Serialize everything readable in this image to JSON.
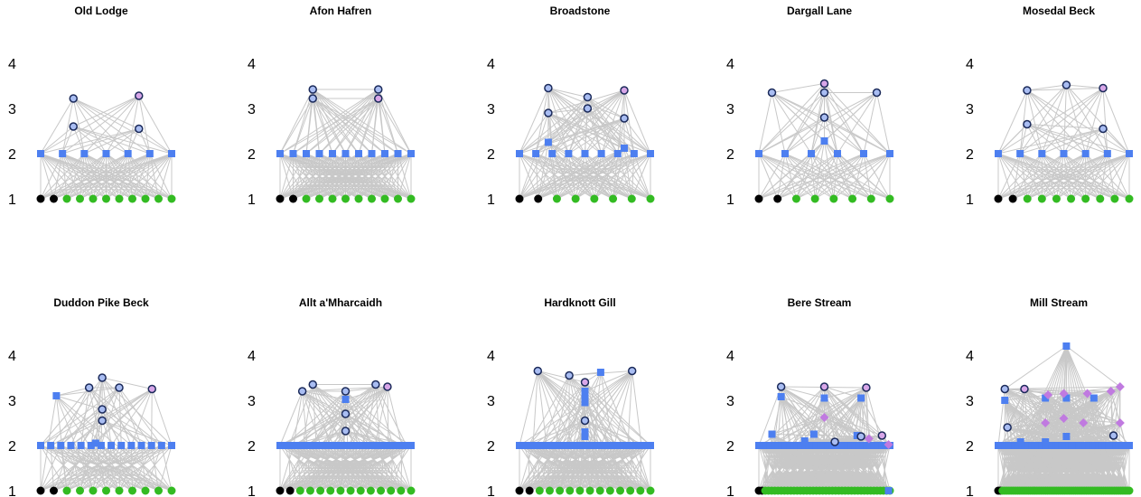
{
  "colors": {
    "edge": "#c8c8c8",
    "basal_black": "#000000",
    "basal_green": "#33bb22",
    "square_blue": "#4d7ff0",
    "circle_fill": "#a9bdf2",
    "circle_stroke": "#1b2a5a",
    "circle_top_fill": "#d8a6e8",
    "diamond": "#c07ae0"
  },
  "chart_data": [
    {
      "type": "food-web",
      "title": "Old Lodge",
      "y_ticks": [
        1,
        2,
        3,
        4
      ],
      "ylim": [
        1,
        4
      ],
      "levels": {
        "basal_black": 2,
        "basal_green": 9,
        "squares": 7,
        "diamonds": [],
        "circles": [
          [
            0.25,
            3.22
          ],
          [
            0.25,
            2.6
          ],
          [
            0.75,
            2.55
          ]
        ],
        "top_circle": [
          0.75,
          3.28
        ]
      }
    },
    {
      "type": "food-web",
      "title": "Afon Hafren",
      "y_ticks": [
        1,
        2,
        3,
        4
      ],
      "ylim": [
        1,
        4
      ],
      "levels": {
        "basal_black": 2,
        "basal_green": 9,
        "squares": 11,
        "diamonds": [],
        "circles": [
          [
            0.25,
            3.42
          ],
          [
            0.25,
            3.22
          ],
          [
            0.75,
            3.42
          ]
        ],
        "top_circle": [
          0.75,
          3.22
        ]
      }
    },
    {
      "type": "food-web",
      "title": "Broadstone",
      "y_ticks": [
        1,
        2,
        3,
        4
      ],
      "ylim": [
        1,
        4
      ],
      "levels": {
        "basal_black": 2,
        "basal_green": 6,
        "squares": 9,
        "diamonds": [],
        "extra_squares": [
          [
            0.22,
            2.25
          ],
          [
            0.8,
            2.12
          ]
        ],
        "circles": [
          [
            0.22,
            3.45
          ],
          [
            0.22,
            2.9
          ],
          [
            0.52,
            3.25
          ],
          [
            0.52,
            3.0
          ],
          [
            0.8,
            2.78
          ]
        ],
        "top_circle": [
          0.8,
          3.4
        ]
      }
    },
    {
      "type": "food-web",
      "title": "Dargall Lane",
      "y_ticks": [
        1,
        2,
        3,
        4
      ],
      "ylim": [
        1,
        4
      ],
      "levels": {
        "basal_black": 2,
        "basal_green": 6,
        "squares": 6,
        "diamonds": [],
        "extra_squares": [
          [
            0.5,
            2.28
          ]
        ],
        "circles": [
          [
            0.1,
            3.35
          ],
          [
            0.5,
            3.35
          ],
          [
            0.5,
            2.8
          ],
          [
            0.9,
            3.35
          ]
        ],
        "top_circle": [
          0.5,
          3.55
        ]
      }
    },
    {
      "type": "food-web",
      "title": "Mosedal Beck",
      "y_ticks": [
        1,
        2,
        3,
        4
      ],
      "ylim": [
        1,
        4
      ],
      "levels": {
        "basal_black": 2,
        "basal_green": 8,
        "squares": 7,
        "diamonds": [],
        "circles": [
          [
            0.22,
            3.4
          ],
          [
            0.22,
            2.65
          ],
          [
            0.52,
            3.52
          ],
          [
            0.8,
            2.55
          ]
        ],
        "top_circle": [
          0.8,
          3.45
        ]
      }
    },
    {
      "type": "food-web",
      "title": "Duddon Pike Beck",
      "y_ticks": [
        1,
        2,
        3,
        4
      ],
      "ylim": [
        1,
        4
      ],
      "levels": {
        "basal_black": 2,
        "basal_green": 9,
        "squares": 14,
        "diamonds": [],
        "extra_squares": [
          [
            0.12,
            3.1
          ],
          [
            0.42,
            2.05
          ]
        ],
        "circles": [
          [
            0.37,
            3.28
          ],
          [
            0.47,
            3.5
          ],
          [
            0.47,
            2.8
          ],
          [
            0.47,
            2.55
          ],
          [
            0.6,
            3.28
          ]
        ],
        "top_circle": [
          0.85,
          3.25
        ]
      }
    },
    {
      "type": "food-web",
      "title": "Allt a'Mharcaidh",
      "y_ticks": [
        1,
        2,
        3,
        4
      ],
      "ylim": [
        1,
        4
      ],
      "levels": {
        "basal_black": 2,
        "basal_green": 12,
        "squares": 30,
        "diamonds": [],
        "extra_squares": [
          [
            0.5,
            3.02
          ]
        ],
        "circles": [
          [
            0.17,
            3.2
          ],
          [
            0.25,
            3.35
          ],
          [
            0.5,
            3.2
          ],
          [
            0.5,
            2.7
          ],
          [
            0.5,
            2.32
          ],
          [
            0.73,
            3.35
          ]
        ],
        "top_circle": [
          0.82,
          3.3
        ]
      }
    },
    {
      "type": "food-web",
      "title": "Hardknott Gill",
      "y_ticks": [
        1,
        2,
        3,
        4
      ],
      "ylim": [
        1,
        4
      ],
      "levels": {
        "basal_black": 2,
        "basal_green": 12,
        "squares": 30,
        "diamonds": [],
        "extra_squares": [
          [
            0.5,
            3.2
          ],
          [
            0.5,
            3.05
          ],
          [
            0.5,
            2.95
          ],
          [
            0.5,
            2.3
          ],
          [
            0.5,
            2.2
          ],
          [
            0.62,
            3.62
          ]
        ],
        "circles": [
          [
            0.14,
            3.65
          ],
          [
            0.38,
            3.55
          ],
          [
            0.5,
            2.55
          ],
          [
            0.86,
            3.65
          ]
        ],
        "top_circle": [
          0.5,
          3.4
        ]
      }
    },
    {
      "type": "food-web",
      "title": "Bere Stream",
      "y_ticks": [
        1,
        2,
        3,
        4
      ],
      "ylim": [
        1,
        4
      ],
      "levels": {
        "basal_black": 2,
        "basal_green": 40,
        "squares": 35,
        "diamonds": [
          [
            0.5,
            2.62
          ],
          [
            0.99,
            2.02
          ],
          [
            0.84,
            2.15
          ]
        ],
        "extra_squares": [
          [
            0.17,
            3.08
          ],
          [
            0.5,
            3.05
          ],
          [
            0.78,
            3.05
          ],
          [
            0.1,
            2.25
          ],
          [
            0.35,
            2.1
          ],
          [
            0.42,
            2.25
          ],
          [
            0.75,
            2.22
          ],
          [
            0.99,
            1.0
          ]
        ],
        "circles": [
          [
            0.17,
            3.3
          ],
          [
            0.58,
            2.08
          ],
          [
            0.78,
            2.2
          ]
        ],
        "top_circles": [
          [
            0.5,
            3.3
          ],
          [
            0.82,
            3.28
          ],
          [
            0.94,
            2.22
          ]
        ]
      }
    },
    {
      "type": "food-web",
      "title": "Mill Stream",
      "y_ticks": [
        1,
        2,
        3,
        4
      ],
      "ylim": [
        1,
        4
      ],
      "levels": {
        "basal_black": 2,
        "basal_green": 60,
        "squares": 40,
        "diamonds": [
          [
            0.5,
            3.15
          ],
          [
            0.68,
            3.15
          ],
          [
            0.86,
            3.2
          ],
          [
            0.36,
            2.5
          ],
          [
            0.5,
            2.6
          ],
          [
            0.65,
            2.5
          ],
          [
            0.93,
            2.5
          ],
          [
            0.38,
            3.12
          ],
          [
            0.93,
            3.3
          ]
        ],
        "extra_squares": [
          [
            0.52,
            4.2
          ],
          [
            0.05,
            3.0
          ],
          [
            0.36,
            3.05
          ],
          [
            0.52,
            3.05
          ],
          [
            0.73,
            3.05
          ],
          [
            0.17,
            2.08
          ],
          [
            0.36,
            2.08
          ],
          [
            0.52,
            2.2
          ]
        ],
        "circles": [
          [
            0.05,
            3.25
          ],
          [
            0.07,
            2.4
          ],
          [
            0.88,
            2.22
          ]
        ],
        "top_circles": [
          [
            0.2,
            3.25
          ]
        ]
      }
    }
  ]
}
